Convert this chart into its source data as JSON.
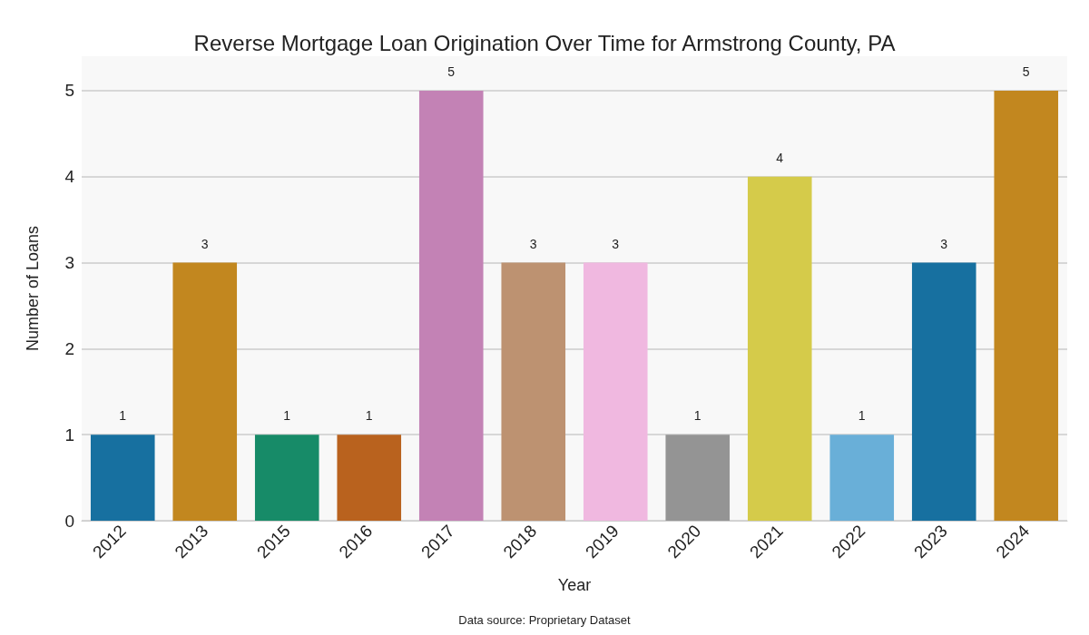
{
  "chart_data": {
    "type": "bar",
    "title": "Reverse Mortgage Loan Origination Over Time for Armstrong County, PA",
    "xlabel": "Year",
    "ylabel": "Number of Loans",
    "categories": [
      "2012",
      "2013",
      "2015",
      "2016",
      "2017",
      "2018",
      "2019",
      "2020",
      "2021",
      "2022",
      "2023",
      "2024"
    ],
    "values": [
      1,
      3,
      1,
      1,
      5,
      3,
      3,
      1,
      4,
      1,
      3,
      5
    ],
    "colors": [
      "#1770a0",
      "#c2871f",
      "#178b68",
      "#b9621e",
      "#c382b5",
      "#bd9271",
      "#f0b8e0",
      "#949494",
      "#d5cb4a",
      "#69afd8",
      "#1770a0",
      "#c2871f"
    ],
    "ylim": [
      0,
      5.4
    ],
    "yticks": [
      0,
      1,
      2,
      3,
      4,
      5
    ],
    "grid": "y",
    "data_labels": true,
    "annotations": [
      "Data source: Proprietary Dataset"
    ]
  }
}
